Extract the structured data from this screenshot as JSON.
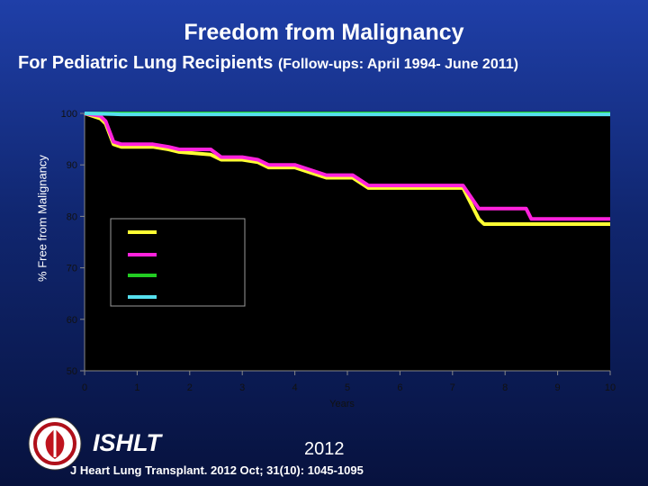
{
  "slide": {
    "title": "Freedom from Malignancy",
    "subtitle_main": "For Pediatric Lung Recipients ",
    "subtitle_note": "(Follow-ups: April 1994- June 2011)",
    "org_label": "ISHLT",
    "year": "2012",
    "citation": "J Heart Lung Transplant. 2012 Oct; 31(10): 1045-1095",
    "colors": {
      "background_top": "#1f3fa8",
      "background_bottom": "#07123e"
    }
  },
  "chart_data": {
    "type": "line",
    "title": "",
    "xlabel": "Years",
    "ylabel": "% Free from Malignancy",
    "xlim": [
      0,
      10
    ],
    "ylim": [
      50,
      100
    ],
    "xticks": [
      0,
      1,
      2,
      3,
      4,
      5,
      6,
      7,
      8,
      9,
      10
    ],
    "yticks": [
      50,
      60,
      70,
      80,
      90,
      100
    ],
    "grid": false,
    "legend_position": "left-middle",
    "series": [
      {
        "color": "#ffff33",
        "x": [
          0,
          0.3,
          0.4,
          0.55,
          0.7,
          1.3,
          1.6,
          1.8,
          2.4,
          2.6,
          3.0,
          3.3,
          3.5,
          4.0,
          4.3,
          4.6,
          5.1,
          5.4,
          6.0,
          7.0,
          7.2,
          7.4,
          7.5,
          7.6,
          8.0,
          9.0,
          10.0
        ],
        "y": [
          100,
          99.0,
          98.0,
          94.0,
          93.5,
          93.5,
          93.0,
          92.5,
          92.0,
          91.0,
          91.0,
          90.5,
          89.5,
          89.5,
          88.5,
          87.5,
          87.5,
          85.5,
          85.5,
          85.5,
          85.5,
          81.5,
          79.5,
          78.5,
          78.5,
          78.5,
          78.5
        ]
      },
      {
        "color": "#ff22dd",
        "x": [
          0,
          0.3,
          0.4,
          0.55,
          0.7,
          1.3,
          1.6,
          1.8,
          2.4,
          2.6,
          3.0,
          3.3,
          3.5,
          4.0,
          4.3,
          4.6,
          5.1,
          5.4,
          6.0,
          7.0,
          7.2,
          7.4,
          7.5,
          7.6,
          8.0,
          8.4,
          8.5,
          9.0,
          10.0
        ],
        "y": [
          100,
          99.5,
          98.5,
          94.5,
          94.0,
          94.0,
          93.5,
          93.0,
          93.0,
          91.5,
          91.5,
          91.0,
          90.0,
          90.0,
          89.0,
          88.0,
          88.0,
          86.0,
          86.0,
          86.0,
          86.0,
          83.0,
          81.5,
          81.5,
          81.5,
          81.5,
          79.5,
          79.5,
          79.5
        ]
      },
      {
        "color": "#22cc22",
        "x": [
          0,
          10.0
        ],
        "y": [
          100,
          100
        ]
      },
      {
        "color": "#55e0ee",
        "x": [
          0,
          0.7,
          10.0
        ],
        "y": [
          100,
          99.8,
          99.8
        ]
      }
    ]
  }
}
